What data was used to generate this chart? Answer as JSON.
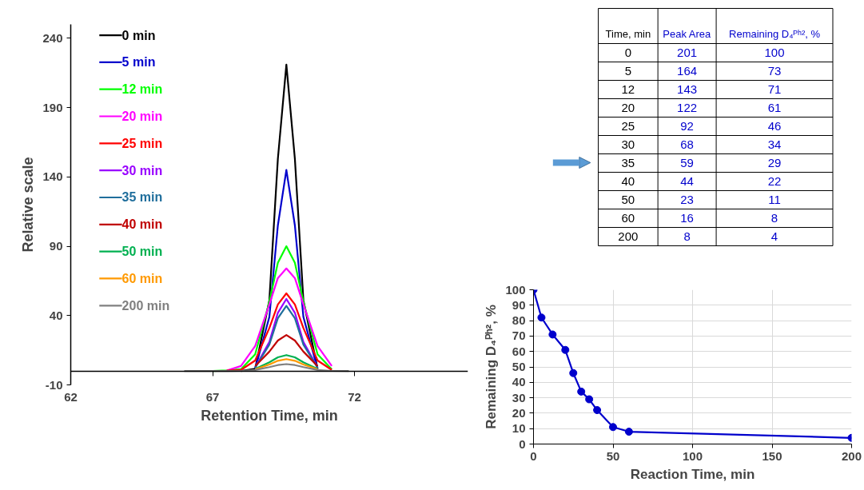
{
  "chart_data": [
    {
      "type": "line",
      "xlabel": "Retention Time, min",
      "ylabel": "Relative scale",
      "xlim": [
        62,
        76
      ],
      "ylim": [
        -10,
        250
      ],
      "xticks": [
        62,
        67,
        72
      ],
      "yticks": [
        -10,
        40,
        90,
        140,
        190,
        240
      ],
      "legend": "top left",
      "x": [
        66,
        67,
        67.5,
        68,
        68.5,
        69,
        69.3,
        69.6,
        69.9,
        70.2,
        70.7,
        71.2,
        71.8
      ],
      "series": [
        {
          "name": "0 min",
          "color": "#000000",
          "values": [
            null,
            null,
            null,
            0,
            1.6,
            51,
            153,
            221,
            153,
            51,
            1.6,
            null,
            null
          ]
        },
        {
          "name": "5 min",
          "color": "#0000cc",
          "values": [
            null,
            null,
            null,
            null,
            1.5,
            39,
            105,
            145,
            105,
            39,
            1.5,
            null,
            null
          ]
        },
        {
          "name": "12 min",
          "color": "#00ff00",
          "values": [
            null,
            0,
            0.5,
            1.3,
            12,
            50,
            78,
            90,
            78,
            50,
            12,
            1.3,
            null
          ]
        },
        {
          "name": "20 min",
          "color": "#ff00ff",
          "values": [
            null,
            null,
            0.4,
            3.6,
            18,
            48,
            67,
            74,
            67,
            48,
            18,
            3.6,
            null
          ]
        },
        {
          "name": "25 min",
          "color": "#ff0000",
          "values": [
            null,
            null,
            0.3,
            0.8,
            7.6,
            31,
            48,
            56,
            48,
            31,
            7.6,
            0.8,
            null
          ]
        },
        {
          "name": "30 min",
          "color": "#9900ff",
          "values": [
            null,
            null,
            null,
            null,
            2.6,
            21,
            42,
            52,
            42,
            21,
            2.6,
            null,
            null
          ]
        },
        {
          "name": "35 min",
          "color": "#1f6e9c",
          "values": [
            null,
            null,
            null,
            null,
            2.4,
            19,
            38,
            47,
            38,
            19,
            2.4,
            null,
            null
          ]
        },
        {
          "name": "40 min",
          "color": "#c00000",
          "values": [
            null,
            null,
            null,
            null,
            3.5,
            14,
            22,
            26,
            22,
            14,
            3.5,
            null,
            null
          ]
        },
        {
          "name": "50 min",
          "color": "#00b050",
          "values": [
            null,
            null,
            null,
            null,
            1.6,
            6.3,
            9.9,
            11.5,
            9.9,
            6.3,
            1.6,
            null,
            null
          ]
        },
        {
          "name": "60 min",
          "color": "#ff9900",
          "values": [
            null,
            null,
            null,
            null,
            1.2,
            4.7,
            7.4,
            8.6,
            7.4,
            4.7,
            1.2,
            null,
            null
          ]
        },
        {
          "name": "200 min",
          "color": "#808080",
          "values": [
            0,
            0,
            0,
            0.1,
            0.7,
            2.8,
            4.3,
            5,
            4.3,
            2.8,
            0.7,
            0.1,
            0
          ]
        }
      ]
    },
    {
      "type": "other",
      "xlabel": "Time, min",
      "categories": [
        "0",
        "5",
        "12",
        "20",
        "25",
        "30",
        "35",
        "40",
        "50",
        "60",
        "200"
      ],
      "data_labels": true,
      "series": [
        {
          "name": "Peak Area",
          "color": "#0000cc",
          "values": [
            201,
            164,
            143,
            122,
            92,
            68,
            59,
            44,
            23,
            16,
            8
          ]
        },
        {
          "name": "Remaining D₄ᴾʰ², %",
          "color": "#0000cc",
          "values": [
            100,
            73,
            71,
            61,
            46,
            34,
            29,
            22,
            11,
            8,
            4
          ]
        }
      ]
    },
    {
      "type": "line",
      "xlabel": "Reaction Time, min",
      "ylabel": "Remaining D₄ᴾʰ², %",
      "xlim": [
        0,
        200
      ],
      "ylim": [
        0,
        100
      ],
      "xticks": [
        0,
        50,
        100,
        150,
        200
      ],
      "yticks": [
        0,
        10,
        20,
        30,
        40,
        50,
        60,
        70,
        80,
        90,
        100
      ],
      "grid": true,
      "marker": "circle",
      "color": "#0000cc",
      "x": [
        0,
        5,
        12,
        20,
        25,
        30,
        35,
        40,
        50,
        60,
        200
      ],
      "values": [
        100,
        82,
        71,
        61,
        46,
        34,
        29,
        22,
        11,
        8,
        4
      ]
    }
  ]
}
